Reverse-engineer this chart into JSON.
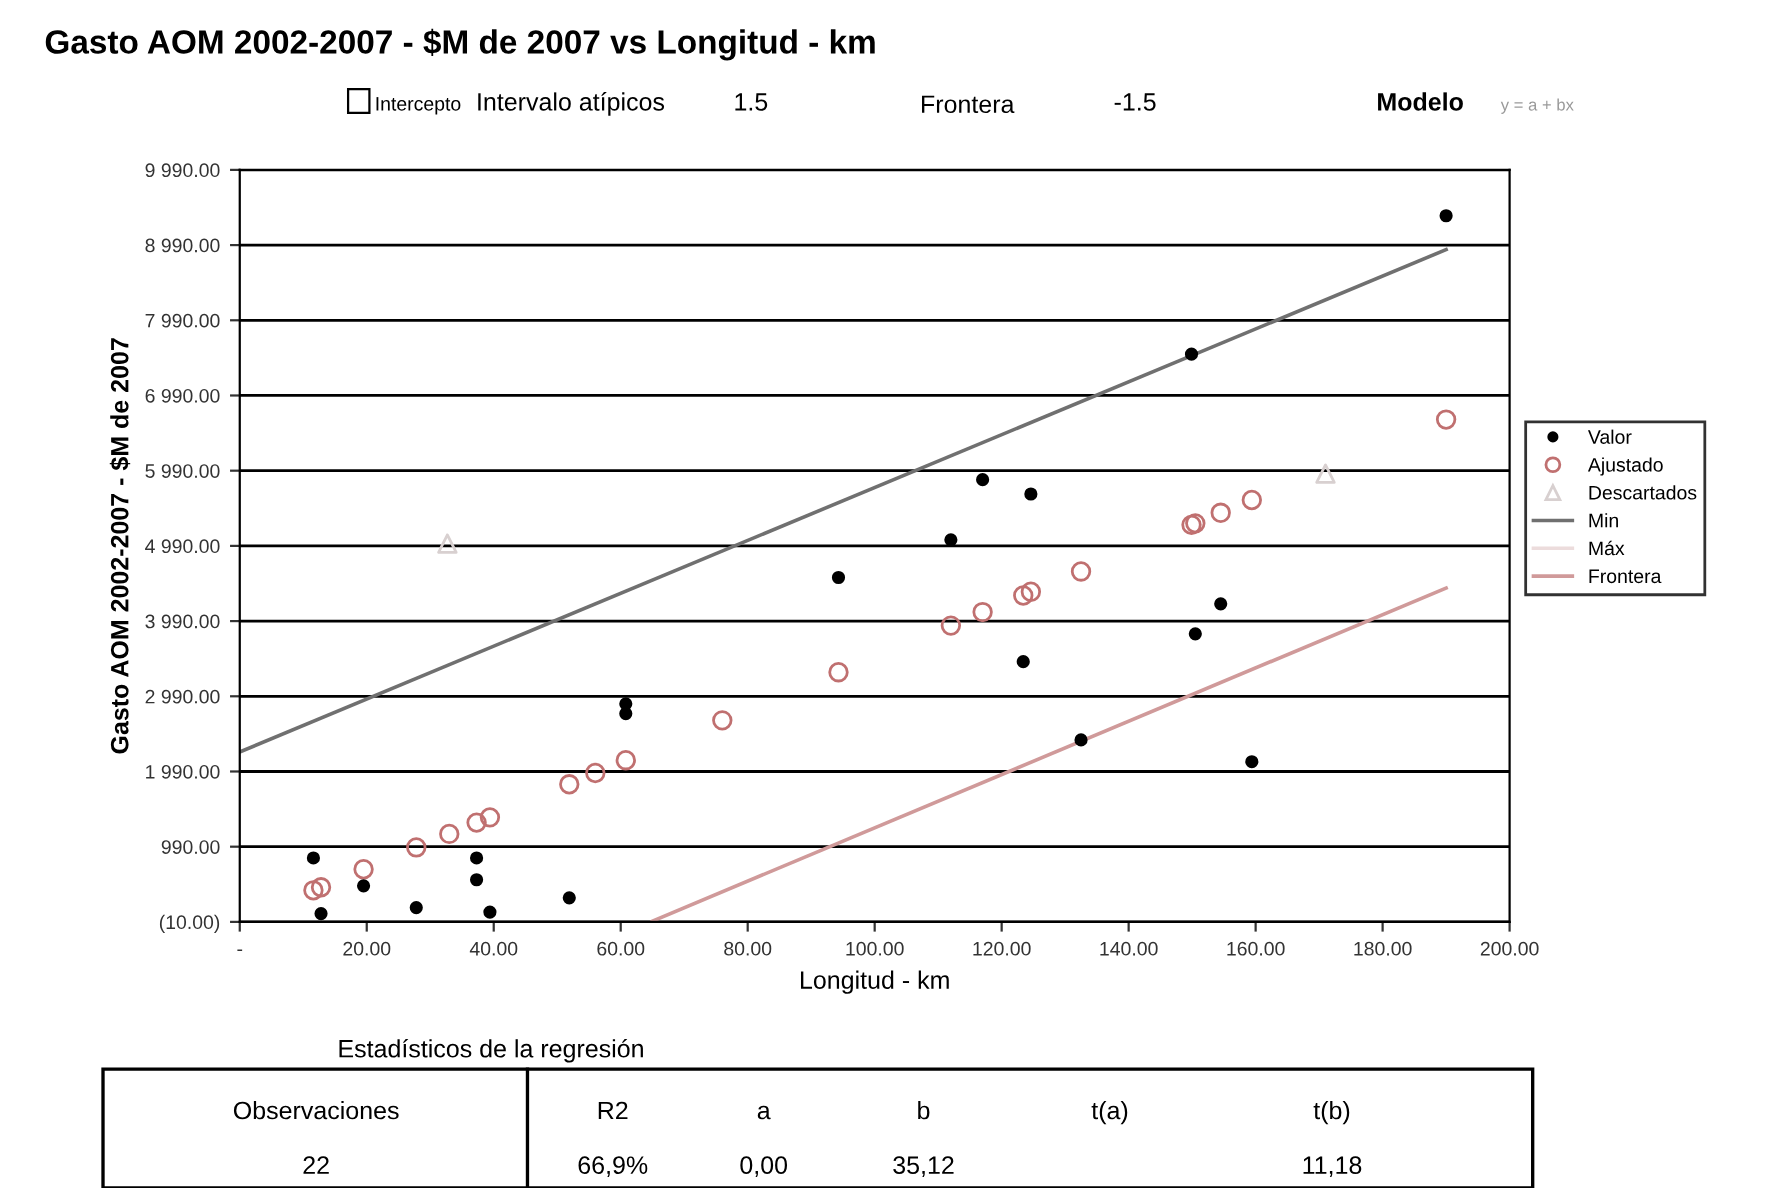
{
  "chart_data": {
    "type": "scatter",
    "title": "Gasto AOM 2002-2007 - $M de 2007 vs Longitud - km",
    "xlabel": "Longitud - km",
    "ylabel": "Gasto AOM 2002-2007 - $M de 2007",
    "xlim": [
      0,
      200
    ],
    "xticks": [
      {
        "value": 0,
        "label": "-"
      },
      {
        "value": 20,
        "label": "20.00"
      },
      {
        "value": 40,
        "label": "40.00"
      },
      {
        "value": 60,
        "label": "60.00"
      },
      {
        "value": 80,
        "label": "80.00"
      },
      {
        "value": 100,
        "label": "100.00"
      },
      {
        "value": 120,
        "label": "120.00"
      },
      {
        "value": 140,
        "label": "140.00"
      },
      {
        "value": 160,
        "label": "160.00"
      },
      {
        "value": 180,
        "label": "180.00"
      },
      {
        "value": 200,
        "label": "200.00"
      }
    ],
    "ylim": [
      -10,
      9990
    ],
    "yticks": [
      {
        "value": -10,
        "label": "(10.00)"
      },
      {
        "value": 990,
        "label": "990.00"
      },
      {
        "value": 1990,
        "label": "1 990.00"
      },
      {
        "value": 2990,
        "label": "2 990.00"
      },
      {
        "value": 3990,
        "label": "3 990.00"
      },
      {
        "value": 4990,
        "label": "4 990.00"
      },
      {
        "value": 5990,
        "label": "5 990.00"
      },
      {
        "value": 6990,
        "label": "6 990.00"
      },
      {
        "value": 7990,
        "label": "7 990.00"
      },
      {
        "value": 8990,
        "label": "8 990.00"
      },
      {
        "value": 9990,
        "label": "9 990.00"
      }
    ],
    "grid": "y",
    "legend": "right",
    "series": [
      {
        "name": "Valor",
        "marker": "circle",
        "color": "#000000",
        "x": [
          11.6,
          12.8,
          19.5,
          27.8,
          37.3,
          37.3,
          39.4,
          51.9,
          60.8,
          60.8,
          94.3,
          112,
          117,
          123.4,
          124.6,
          132.5,
          149.9,
          150.5,
          154.5,
          159.4,
          190
        ],
        "values": [
          840,
          100,
          470,
          180,
          840,
          550,
          120,
          310,
          2890,
          2760,
          4570,
          5070,
          5870,
          3450,
          5680,
          2410,
          7540,
          3820,
          4220,
          2120,
          9380
        ]
      },
      {
        "name": "Ajustado",
        "type": "scatter",
        "marker": "circle",
        "color": "#c07070",
        "x": [
          11.6,
          12.8,
          19.5,
          27.8,
          33,
          37.3,
          39.4,
          51.9,
          56,
          60.8,
          76,
          94.3,
          112,
          117,
          123.4,
          124.6,
          132.5,
          149.9,
          150.5,
          154.5,
          159.4,
          190
        ],
        "values": [
          410,
          450,
          690,
          980,
          1160,
          1310,
          1380,
          1820,
          1970,
          2140,
          2670,
          3310,
          3930,
          4110,
          4330,
          4380,
          4650,
          5270,
          5290,
          5430,
          5600,
          6670
        ]
      },
      {
        "name": "Descartados",
        "type": "scatter",
        "marker": "triangle",
        "color": "#d8d0d0",
        "x": [
          32.7,
          171
        ],
        "values": [
          5020,
          5950
        ]
      },
      {
        "name": "Min",
        "type": "line",
        "marker": "none",
        "color": "#707070",
        "x": [
          0,
          190
        ],
        "values": [
          2250,
          8930
        ]
      },
      {
        "name": "Máx",
        "type": "line",
        "marker": "none",
        "color": "#ecdcdc"
      },
      {
        "name": "Frontera",
        "type": "line",
        "marker": "none",
        "color": "#d09a9a",
        "x": [
          65,
          190
        ],
        "values": [
          0,
          4430
        ]
      }
    ],
    "annotations": [
      "Intercepto",
      "Intervalo atípicos",
      "1.5",
      "Frontera",
      "-1.5",
      "Modelo",
      "y = a + bx",
      "Estadísticos de la regresión",
      "Observaciones",
      "22",
      "R2",
      "66,9%",
      "a",
      "0,00",
      "b",
      "35,12",
      "t(a)",
      "t(b)",
      "11,18"
    ]
  }
}
